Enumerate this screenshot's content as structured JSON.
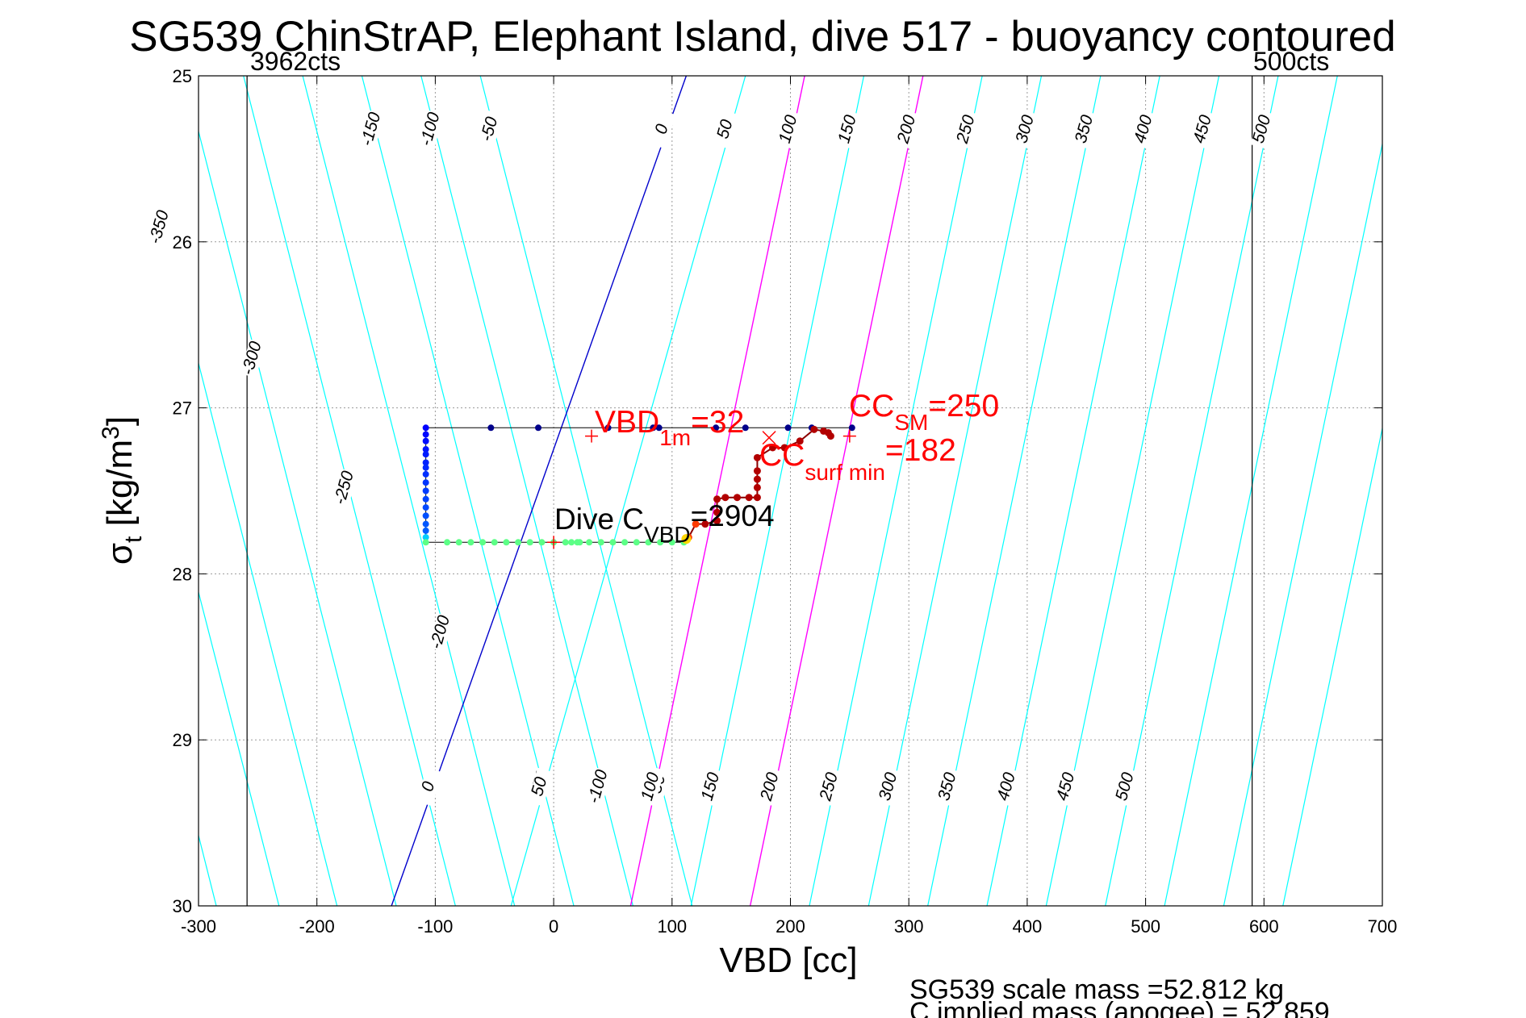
{
  "chart_data": {
    "type": "scatter",
    "title": "SG539 ChinStrAP, Elephant Island, dive 517 - buoyancy contoured",
    "xlabel": "VBD [cc]",
    "ylabel": "σ",
    "ylabel_sub": "t",
    "ylabel_unit_main": " [kg/m",
    "ylabel_unit_sup": "3",
    "ylabel_unit_end": "]",
    "xlim": [
      -300,
      700
    ],
    "ylim": [
      25,
      30
    ],
    "y_reversed": true,
    "grid": true,
    "x_ticks": [
      -300,
      -200,
      -100,
      0,
      100,
      200,
      300,
      400,
      500,
      600,
      700
    ],
    "x_tick_labels": [
      "-300",
      "-200",
      "-100",
      "0",
      "100",
      "200",
      "300",
      "400",
      "500",
      "600",
      "700"
    ],
    "y_ticks": [
      25,
      26,
      27,
      28,
      29,
      30
    ],
    "y_tick_labels": [
      "25",
      "26",
      "27",
      "28",
      "29",
      "30"
    ],
    "contours": {
      "values": [
        -450,
        -400,
        -350,
        -300,
        -250,
        -200,
        -150,
        -100,
        -50,
        0,
        50,
        100,
        150,
        200,
        250,
        300,
        350,
        400,
        450,
        500,
        550,
        600,
        650
      ],
      "x_at_sigma25": [
        -462,
        -412,
        -362,
        -312,
        -262,
        -212,
        -162,
        -112,
        -62,
        112,
        162,
        212,
        262,
        312,
        362,
        412,
        462,
        512,
        562,
        612,
        662,
        712,
        762
      ],
      "x_at_sigma30": [
        -285,
        -232,
        -183,
        -133,
        -83,
        -33,
        17,
        67,
        117,
        -137,
        -36,
        65,
        116,
        166,
        216,
        266,
        316,
        366,
        416,
        466,
        516,
        566,
        616
      ],
      "colors": {
        "default": "#00ffff",
        "zero": "#0000cc",
        "highlight": "#ff00ff"
      },
      "highlight_values": [
        100,
        200
      ]
    },
    "contour_labels_top": [
      "-150",
      "-100",
      "-50",
      "0",
      "50",
      "100",
      "150",
      "200",
      "250",
      "300",
      "350",
      "400",
      "450",
      "500"
    ],
    "contour_labels_bottom": [
      "-150",
      "-100",
      "-50",
      "0",
      "50",
      "100",
      "150",
      "200",
      "250",
      "300",
      "350",
      "400",
      "450",
      "500"
    ],
    "contour_labels_left": [
      "-350",
      "-300",
      "-250",
      "-200"
    ],
    "vlines": [
      {
        "x": -259,
        "label": "3962cts"
      },
      {
        "x": 590,
        "label": "500cts"
      }
    ],
    "series": [
      {
        "name": "",
        "color_role": "dive descent (blue)",
        "points": [
          [
            -108,
            27.12
          ],
          [
            -108,
            27.16
          ],
          [
            -108,
            27.2
          ],
          [
            -108,
            27.25
          ],
          [
            -108,
            27.28
          ],
          [
            -108,
            27.33
          ],
          [
            -108,
            27.36
          ],
          [
            -108,
            27.4
          ],
          [
            -108,
            27.45
          ],
          [
            -108,
            27.5
          ],
          [
            -108,
            27.55
          ],
          [
            -108,
            27.6
          ],
          [
            -108,
            27.65
          ],
          [
            -108,
            27.7
          ],
          [
            -108,
            27.74
          ],
          [
            -108,
            27.78
          ]
        ]
      },
      {
        "name": "",
        "color_role": "surface row (blue)",
        "points": [
          [
            -53,
            27.12
          ],
          [
            -13,
            27.12
          ],
          [
            46,
            27.12
          ],
          [
            84,
            27.12
          ],
          [
            89,
            27.12
          ],
          [
            137,
            27.12
          ],
          [
            162,
            27.12
          ],
          [
            198,
            27.12
          ],
          [
            218,
            27.12
          ],
          [
            252,
            27.12
          ]
        ]
      },
      {
        "name": "",
        "color_role": "bottom row (green)",
        "points": [
          [
            -108,
            27.81
          ],
          [
            -90,
            27.81
          ],
          [
            -80,
            27.81
          ],
          [
            -70,
            27.81
          ],
          [
            -60,
            27.81
          ],
          [
            -50,
            27.81
          ],
          [
            -40,
            27.81
          ],
          [
            -30,
            27.81
          ],
          [
            -20,
            27.81
          ],
          [
            -10,
            27.81
          ],
          [
            0,
            27.81
          ],
          [
            10,
            27.81
          ],
          [
            15,
            27.81
          ],
          [
            20,
            27.81
          ],
          [
            22,
            27.81
          ],
          [
            30,
            27.81
          ],
          [
            40,
            27.81
          ],
          [
            50,
            27.81
          ],
          [
            60,
            27.81
          ],
          [
            70,
            27.81
          ],
          [
            80,
            27.81
          ],
          [
            90,
            27.81
          ],
          [
            100,
            27.81
          ],
          [
            110,
            27.81
          ]
        ]
      },
      {
        "name": "",
        "color_role": "ascent (red/dark red)",
        "points": [
          [
            114,
            27.78
          ],
          [
            120,
            27.7
          ],
          [
            128,
            27.7
          ],
          [
            138,
            27.68
          ],
          [
            138,
            27.63
          ],
          [
            138,
            27.55
          ],
          [
            145,
            27.54
          ],
          [
            155,
            27.54
          ],
          [
            165,
            27.54
          ],
          [
            172,
            27.54
          ],
          [
            172,
            27.48
          ],
          [
            172,
            27.43
          ],
          [
            172,
            27.38
          ],
          [
            172,
            27.3
          ],
          [
            185,
            27.24
          ],
          [
            195,
            27.24
          ],
          [
            208,
            27.2
          ],
          [
            220,
            27.13
          ],
          [
            228,
            27.14
          ],
          [
            232,
            27.15
          ],
          [
            234,
            27.17
          ]
        ]
      }
    ],
    "markers": [
      {
        "x": 32,
        "y": 27.17,
        "symbol": "+",
        "color": "#ff0000"
      },
      {
        "x": 250,
        "y": 27.17,
        "symbol": "+",
        "color": "#ff0000"
      },
      {
        "x": 182,
        "y": 27.18,
        "symbol": "x",
        "color": "#ff0000"
      },
      {
        "x": 0,
        "y": 27.81,
        "symbol": "+",
        "color": "#ff0000"
      }
    ],
    "dive_box": {
      "x_min": -108,
      "x_max": 252,
      "y_top": 27.12,
      "y_bottom": 27.81
    },
    "annotations": [
      {
        "main": "VBD",
        "sub": "1m",
        "tail": "=32",
        "color": "#ff0000"
      },
      {
        "main": "CC",
        "sub": "SM",
        "tail": "=250",
        "color": "#ff0000"
      },
      {
        "main": "CC",
        "sub": "surf min",
        "tail": "=182",
        "color": "#ff0000"
      },
      {
        "main": "Dive C",
        "sub": "VBD",
        "tail": "=2904",
        "color": "#000000"
      }
    ],
    "footer_lines": [
      "SG539 scale mass =52.812 kg",
      "C      implied mass (apogee) = 52.859"
    ]
  }
}
